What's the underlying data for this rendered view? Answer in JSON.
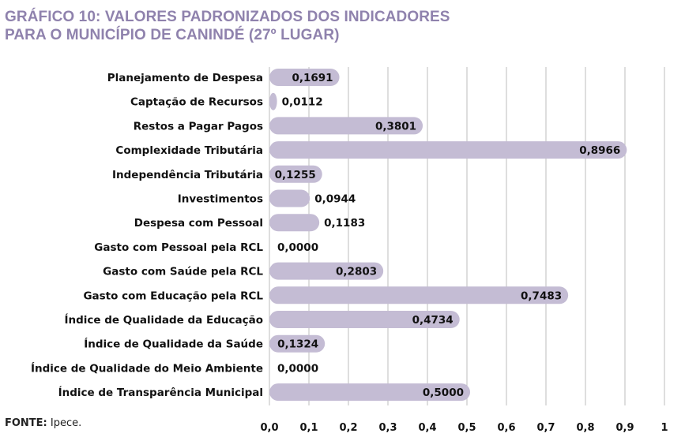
{
  "title_line1": "GRÁFICO 10: VALORES PADRONIZADOS DOS INDICADORES",
  "title_line2": "PARA O MUNICÍPIO DE CANINDÉ (27º LUGAR)",
  "source_label": "FONTE:",
  "source_text": " Ipece.",
  "colors": {
    "bar": "#c4bcd4",
    "title": "#8f82ad",
    "grid": "#bdbdbd"
  },
  "chart_data": {
    "type": "bar",
    "orientation": "horizontal",
    "categories": [
      "Planejamento de Despesa",
      "Captação de Recursos",
      "Restos a Pagar Pagos",
      "Complexidade Tributária",
      "Independência Tributária",
      "Investimentos",
      "Despesa com Pessoal",
      "Gasto com Pessoal pela RCL",
      "Gasto com Saúde pela RCL",
      "Gasto com Educação pela RCL",
      "Índice de Qualidade da Educação",
      "Índice de Qualidade da Saúde",
      "Índice de Qualidade do Meio Ambiente",
      "Índice de Transparência Municipal"
    ],
    "values": [
      0.1691,
      0.0112,
      0.3801,
      0.8966,
      0.1255,
      0.0944,
      0.1183,
      0.0,
      0.2803,
      0.7483,
      0.4734,
      0.1324,
      0.0,
      0.5
    ],
    "value_labels": [
      "0,1691",
      "0,0112",
      "0,3801",
      "0,8966",
      "0,1255",
      "0,0944",
      "0,1183",
      "0,0000",
      "0,2803",
      "0,7483",
      "0,4734",
      "0,1324",
      "0,0000",
      "0,5000"
    ],
    "xlim": [
      0,
      1
    ],
    "xticks": [
      "0,0",
      "0,1",
      "0,2",
      "0,3",
      "0,4",
      "0,5",
      "0,6",
      "0,7",
      "0,8",
      "0,9",
      "1"
    ],
    "grid": true,
    "legend": "none"
  }
}
